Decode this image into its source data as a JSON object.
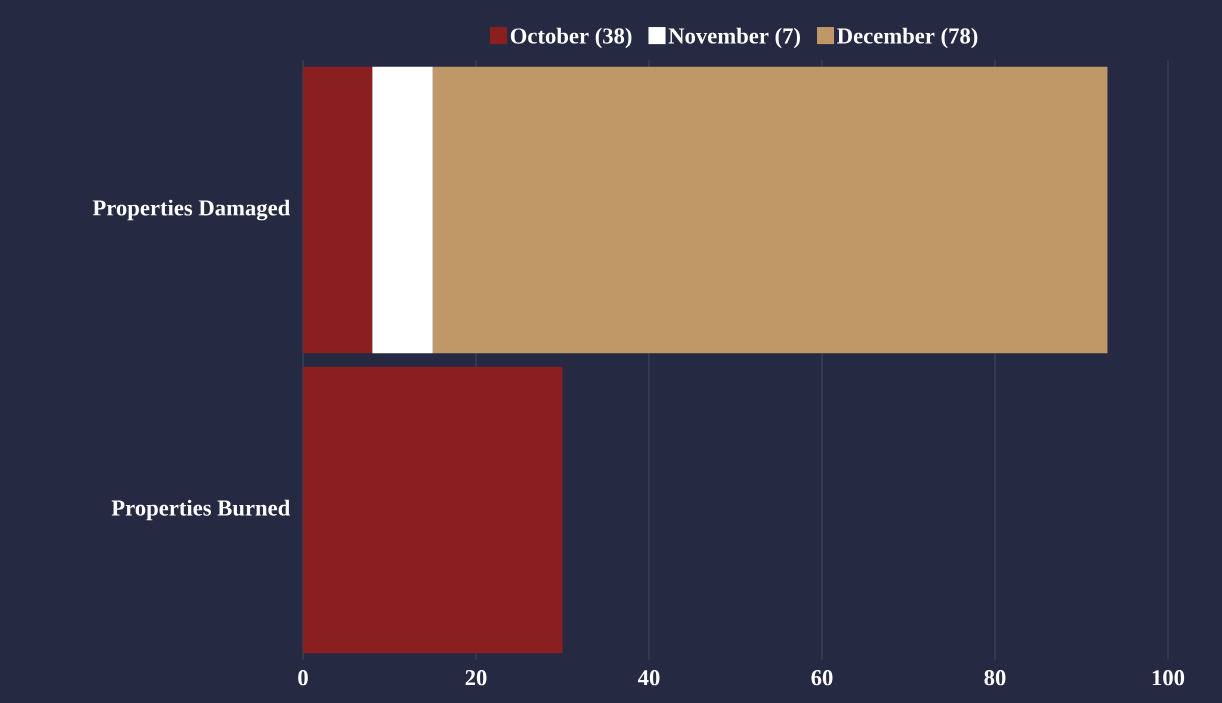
{
  "chart_data": {
    "type": "bar",
    "orientation": "horizontal",
    "stacked": true,
    "categories": [
      "Properties Damaged",
      "Properties Burned"
    ],
    "series": [
      {
        "name": "October (38)",
        "color": "#8b1f20",
        "values": [
          8,
          30
        ]
      },
      {
        "name": "November (7)",
        "color": "#ffffff",
        "values": [
          7,
          null
        ]
      },
      {
        "name": "December (78)",
        "color": "#c09767",
        "values": [
          78,
          null
        ]
      }
    ],
    "xlim": [
      0,
      100
    ],
    "xticks": [
      0,
      20,
      40,
      60,
      80,
      100
    ],
    "grid": "x",
    "legend": "top"
  }
}
